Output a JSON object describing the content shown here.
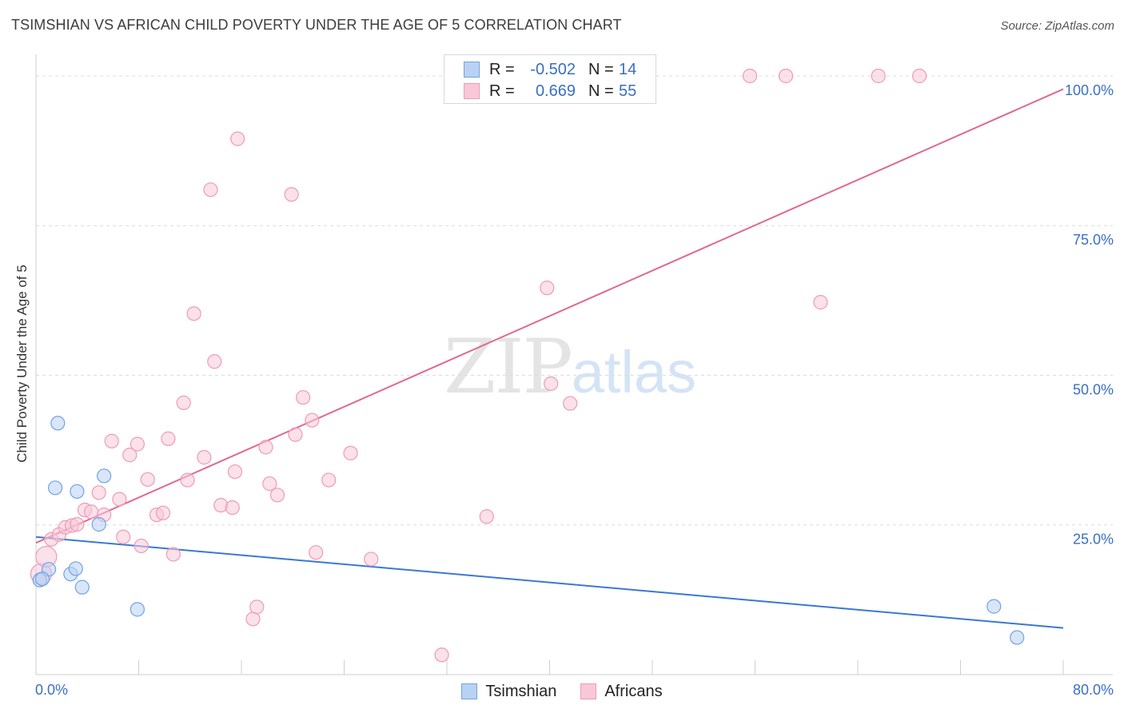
{
  "title": "TSIMSHIAN VS AFRICAN CHILD POVERTY UNDER THE AGE OF 5 CORRELATION CHART",
  "source": "Source: ZipAtlas.com",
  "watermark": {
    "part1": "ZIP",
    "part2": "atlas"
  },
  "legend": {
    "r_label": "R =",
    "n_label": "N =",
    "tsimshian": {
      "r": "-0.502",
      "n": "14"
    },
    "africans": {
      "r": "0.669",
      "n": "55"
    }
  },
  "chart_data": {
    "type": "scatter",
    "title": "TSIMSHIAN VS AFRICAN CHILD POVERTY UNDER THE AGE OF 5 CORRELATION CHART",
    "xlabel": "",
    "ylabel": "Child Poverty Under the Age of 5",
    "xlim": [
      0,
      80
    ],
    "ylim": [
      0,
      102
    ],
    "x_tick_labels": [
      "0.0%",
      "80.0%"
    ],
    "y_ticks": [
      25,
      50,
      75,
      100
    ],
    "y_tick_labels": [
      "25.0%",
      "50.0%",
      "75.0%",
      "100.0%"
    ],
    "grid": true,
    "series": [
      {
        "name": "Tsimshian",
        "color": "#6fa3e6",
        "fill": "#b9d2f3",
        "points": [
          [
            0.3,
            15.8
          ],
          [
            1.0,
            17.6
          ],
          [
            1.5,
            31.2
          ],
          [
            1.7,
            42.0
          ],
          [
            2.7,
            16.8
          ],
          [
            3.1,
            17.7
          ],
          [
            3.2,
            30.6
          ],
          [
            3.6,
            14.6
          ],
          [
            4.9,
            25.1
          ],
          [
            5.3,
            33.2
          ],
          [
            7.9,
            10.9
          ],
          [
            74.6,
            11.4
          ],
          [
            76.4,
            6.2
          ],
          [
            0.5,
            16.0
          ]
        ],
        "trend": [
          [
            0,
            23.0
          ],
          [
            80,
            7.8
          ]
        ],
        "trend_color": "#3a78d4"
      },
      {
        "name": "Africans",
        "color": "#ee9bb5",
        "fill": "#f8c8d8",
        "points": [
          [
            0.4,
            16.8
          ],
          [
            0.8,
            19.7
          ],
          [
            1.2,
            22.6
          ],
          [
            1.8,
            23.4
          ],
          [
            2.3,
            24.6
          ],
          [
            2.8,
            24.9
          ],
          [
            3.2,
            25.1
          ],
          [
            3.8,
            27.5
          ],
          [
            4.3,
            27.2
          ],
          [
            4.9,
            30.4
          ],
          [
            5.3,
            26.7
          ],
          [
            5.9,
            39.0
          ],
          [
            6.5,
            29.3
          ],
          [
            6.8,
            23.0
          ],
          [
            7.3,
            36.7
          ],
          [
            7.9,
            38.5
          ],
          [
            8.2,
            21.5
          ],
          [
            8.7,
            32.6
          ],
          [
            9.4,
            26.7
          ],
          [
            9.9,
            27.0
          ],
          [
            10.3,
            39.4
          ],
          [
            10.7,
            20.1
          ],
          [
            11.5,
            45.4
          ],
          [
            11.8,
            32.5
          ],
          [
            12.3,
            60.3
          ],
          [
            13.1,
            36.3
          ],
          [
            13.6,
            81.0
          ],
          [
            13.9,
            52.3
          ],
          [
            14.4,
            28.3
          ],
          [
            15.3,
            27.9
          ],
          [
            15.5,
            33.9
          ],
          [
            15.7,
            89.5
          ],
          [
            16.9,
            9.3
          ],
          [
            17.2,
            11.3
          ],
          [
            17.9,
            38.0
          ],
          [
            18.2,
            31.9
          ],
          [
            18.8,
            30.0
          ],
          [
            19.9,
            80.2
          ],
          [
            20.2,
            40.1
          ],
          [
            20.8,
            46.3
          ],
          [
            21.5,
            42.5
          ],
          [
            21.8,
            20.4
          ],
          [
            22.8,
            32.5
          ],
          [
            24.5,
            37.0
          ],
          [
            26.1,
            19.3
          ],
          [
            31.6,
            3.3
          ],
          [
            35.1,
            26.4
          ],
          [
            39.8,
            64.6
          ],
          [
            40.1,
            48.6
          ],
          [
            41.6,
            45.3
          ],
          [
            55.6,
            100.0
          ],
          [
            58.4,
            100.0
          ],
          [
            61.1,
            62.2
          ],
          [
            65.6,
            100.0
          ],
          [
            68.8,
            100.0
          ]
        ],
        "trend": [
          [
            0,
            22.0
          ],
          [
            80,
            97.8
          ]
        ],
        "trend_color": "#e06892"
      }
    ]
  }
}
